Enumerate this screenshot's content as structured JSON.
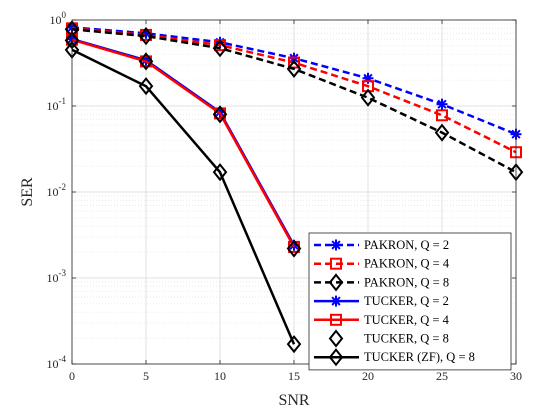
{
  "chart_data": {
    "type": "line",
    "xlabel": "SNR",
    "ylabel": "SER",
    "xlim": [
      0,
      30
    ],
    "ylim": [
      0.0001,
      1
    ],
    "yscale": "log",
    "grid": true,
    "legend_position": "bottom-right",
    "x_ticks": [
      "0",
      "5",
      "10",
      "15",
      "20",
      "25",
      "30"
    ],
    "y_ticks": [
      {
        "base": "10",
        "exp": "-4",
        "value": 0.0001
      },
      {
        "base": "10",
        "exp": "-3",
        "value": 0.001
      },
      {
        "base": "10",
        "exp": "-2",
        "value": 0.01
      },
      {
        "base": "10",
        "exp": "-1",
        "value": 0.1
      },
      {
        "base": "10",
        "exp": "0",
        "value": 1
      }
    ],
    "series": [
      {
        "name": "PAKRON, Q = 2",
        "color": "#0000ff",
        "dash": "dashed",
        "marker": "asterisk",
        "x": [
          0,
          5,
          10,
          15,
          20,
          25,
          30
        ],
        "y": [
          0.82,
          0.7,
          0.55,
          0.36,
          0.21,
          0.105,
          0.047
        ]
      },
      {
        "name": "PAKRON, Q = 4",
        "color": "#ff0000",
        "dash": "dashed",
        "marker": "square",
        "x": [
          0,
          5,
          10,
          15,
          20,
          25,
          30
        ],
        "y": [
          0.8,
          0.67,
          0.51,
          0.32,
          0.17,
          0.078,
          0.029
        ]
      },
      {
        "name": "PAKRON, Q = 8",
        "color": "#000000",
        "dash": "dashed",
        "marker": "diamond",
        "x": [
          0,
          5,
          10,
          15,
          20,
          25,
          30
        ],
        "y": [
          0.78,
          0.65,
          0.47,
          0.27,
          0.125,
          0.049,
          0.017
        ]
      },
      {
        "name": "TUCKER, Q = 2",
        "color": "#0000ff",
        "dash": "solid",
        "marker": "asterisk",
        "x": [
          0,
          5,
          10,
          15
        ],
        "y": [
          0.6,
          0.34,
          0.085,
          0.0024
        ]
      },
      {
        "name": "TUCKER, Q = 4",
        "color": "#ff0000",
        "dash": "solid",
        "marker": "square",
        "x": [
          0,
          5,
          10,
          15
        ],
        "y": [
          0.59,
          0.33,
          0.082,
          0.0023
        ]
      },
      {
        "name": "TUCKER, Q = 8",
        "color": "#000000",
        "dash": "none",
        "marker": "diamond",
        "x": [
          0,
          5,
          10,
          15
        ],
        "y": [
          0.58,
          0.33,
          0.08,
          0.0022
        ]
      },
      {
        "name": "TUCKER (ZF), Q = 8",
        "color": "#000000",
        "dash": "solid",
        "marker": "diamond",
        "x": [
          0,
          5,
          10,
          15
        ],
        "y": [
          0.45,
          0.17,
          0.017,
          0.00017
        ]
      }
    ]
  }
}
